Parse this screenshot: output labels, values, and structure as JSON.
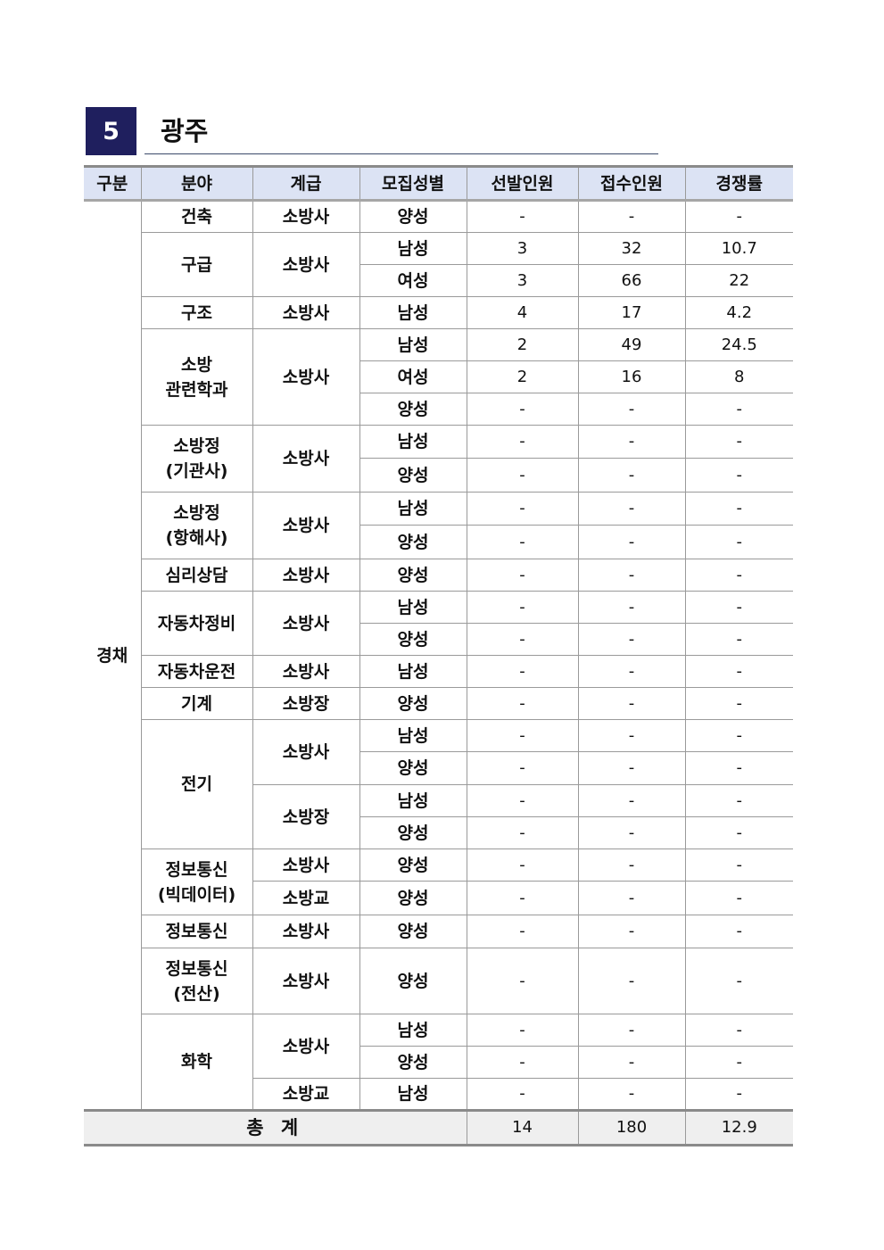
{
  "section": {
    "number": "5",
    "title": "광주"
  },
  "table": {
    "headers": [
      "구분",
      "분야",
      "계급",
      "모집성별",
      "선발인원",
      "접수인원",
      "경쟁률"
    ],
    "category": "경채",
    "rows": [
      [
        {
          "t": "건축"
        },
        {
          "t": "소방사"
        },
        {
          "t": "양성"
        },
        "-",
        "-",
        "-"
      ],
      [
        {
          "t": "구급",
          "rs": 2
        },
        {
          "t": "소방사",
          "rs": 2
        },
        {
          "t": "남성"
        },
        "3",
        "32",
        "10.7"
      ],
      [
        {
          "t": "여성"
        },
        "3",
        "66",
        "22"
      ],
      [
        {
          "t": "구조"
        },
        {
          "t": "소방사"
        },
        {
          "t": "남성"
        },
        "4",
        "17",
        "4.2"
      ],
      [
        {
          "t": "소방\n관련학과",
          "rs": 3
        },
        {
          "t": "소방사",
          "rs": 3
        },
        {
          "t": "남성"
        },
        "2",
        "49",
        "24.5"
      ],
      [
        {
          "t": "여성"
        },
        "2",
        "16",
        "8"
      ],
      [
        {
          "t": "양성"
        },
        "-",
        "-",
        "-"
      ],
      [
        {
          "t": "소방정\n(기관사)",
          "rs": 2
        },
        {
          "t": "소방사",
          "rs": 2
        },
        {
          "t": "남성"
        },
        "-",
        "-",
        "-"
      ],
      [
        {
          "t": "양성"
        },
        "-",
        "-",
        "-"
      ],
      [
        {
          "t": "소방정\n(항해사)",
          "rs": 2
        },
        {
          "t": "소방사",
          "rs": 2
        },
        {
          "t": "남성"
        },
        "-",
        "-",
        "-"
      ],
      [
        {
          "t": "양성"
        },
        "-",
        "-",
        "-"
      ],
      [
        {
          "t": "심리상담"
        },
        {
          "t": "소방사"
        },
        {
          "t": "양성"
        },
        "-",
        "-",
        "-"
      ],
      [
        {
          "t": "자동차정비",
          "rs": 2
        },
        {
          "t": "소방사",
          "rs": 2
        },
        {
          "t": "남성"
        },
        "-",
        "-",
        "-"
      ],
      [
        {
          "t": "양성"
        },
        "-",
        "-",
        "-"
      ],
      [
        {
          "t": "자동차운전"
        },
        {
          "t": "소방사"
        },
        {
          "t": "남성"
        },
        "-",
        "-",
        "-"
      ],
      [
        {
          "t": "기계"
        },
        {
          "t": "소방장"
        },
        {
          "t": "양성"
        },
        "-",
        "-",
        "-"
      ],
      [
        {
          "t": "전기",
          "rs": 4
        },
        {
          "t": "소방사",
          "rs": 2
        },
        {
          "t": "남성"
        },
        "-",
        "-",
        "-"
      ],
      [
        {
          "t": "양성"
        },
        "-",
        "-",
        "-"
      ],
      [
        {
          "t": "소방장",
          "rs": 2
        },
        {
          "t": "남성"
        },
        "-",
        "-",
        "-"
      ],
      [
        {
          "t": "양성"
        },
        "-",
        "-",
        "-"
      ],
      [
        {
          "t": "정보통신\n(빅데이터)",
          "rs": 2
        },
        {
          "t": "소방사"
        },
        {
          "t": "양성"
        },
        "-",
        "-",
        "-"
      ],
      [
        {
          "t": "소방교"
        },
        {
          "t": "양성"
        },
        "-",
        "-",
        "-"
      ],
      [
        {
          "t": "정보통신"
        },
        {
          "t": "소방사"
        },
        {
          "t": "양성"
        },
        "-",
        "-",
        "-"
      ],
      [
        {
          "t": "정보통신\n(전산)"
        },
        {
          "t": "소방사"
        },
        {
          "t": "양성"
        },
        "-",
        "-",
        "-"
      ],
      [
        {
          "t": "화학",
          "rs": 3
        },
        {
          "t": "소방사",
          "rs": 2
        },
        {
          "t": "남성"
        },
        "-",
        "-",
        "-"
      ],
      [
        {
          "t": "양성"
        },
        "-",
        "-",
        "-"
      ],
      [
        {
          "t": "소방교"
        },
        {
          "t": "남성"
        },
        "-",
        "-",
        "-"
      ]
    ],
    "total": {
      "label": "총 계",
      "selected": "14",
      "applied": "180",
      "ratio": "12.9"
    }
  }
}
